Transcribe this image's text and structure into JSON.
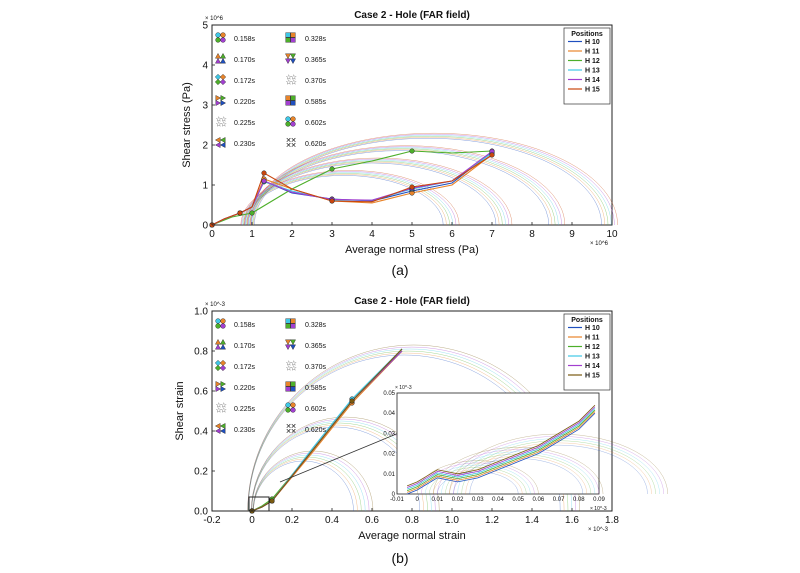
{
  "panels": [
    {
      "id": "a",
      "caption": "(a)",
      "chart_data": {
        "type": "line",
        "title": "Case 2 - Hole (FAR field)",
        "xlabel": "Average normal stress (Pa)",
        "ylabel": "Shear stress (Pa)",
        "xlim": [
          0,
          10
        ],
        "ylim": [
          0,
          5
        ],
        "x_multiplier": "× 10^6",
        "y_multiplier": "× 10^6",
        "x_ticks": [
          "0",
          "1",
          "2",
          "3",
          "4",
          "5",
          "6",
          "7",
          "8",
          "9",
          "10"
        ],
        "y_ticks": [
          "0",
          "1",
          "2",
          "3",
          "4",
          "5"
        ],
        "legend_title": "Positions",
        "series": [
          {
            "name": "H 10",
            "color": "#1f4fbf",
            "x": [
              0,
              0.3,
              0.7,
              1.0,
              1.3,
              2.0,
              3.0,
              4.0,
              5.0,
              6.0,
              7.0
            ],
            "y": [
              0,
              0.15,
              0.3,
              0.45,
              1.1,
              0.8,
              0.65,
              0.6,
              0.85,
              1.05,
              1.82
            ]
          },
          {
            "name": "H 11",
            "color": "#e8842a",
            "x": [
              0,
              0.3,
              0.7,
              1.0,
              1.3,
              2.0,
              3.0,
              4.0,
              5.0,
              6.0,
              7.0
            ],
            "y": [
              0,
              0.15,
              0.3,
              0.45,
              1.15,
              0.9,
              0.6,
              0.55,
              0.8,
              1.0,
              1.76
            ]
          },
          {
            "name": "H 12",
            "color": "#4daf2a",
            "x": [
              0,
              0.5,
              1.0,
              2.0,
              3.0,
              4.0,
              5.0,
              6.0,
              7.0
            ],
            "y": [
              0,
              0.2,
              0.3,
              0.9,
              1.4,
              1.6,
              1.85,
              1.8,
              1.85
            ]
          },
          {
            "name": "H 13",
            "color": "#3fc7e6",
            "x": [
              0,
              0.3,
              0.7,
              1.0,
              1.3,
              2.0,
              3.0,
              4.0,
              5.0,
              6.0,
              7.0
            ],
            "y": [
              0,
              0.15,
              0.3,
              0.45,
              1.08,
              0.85,
              0.62,
              0.62,
              0.9,
              1.1,
              1.8
            ]
          },
          {
            "name": "H 14",
            "color": "#a23fd0",
            "x": [
              0,
              0.3,
              0.7,
              1.0,
              1.3,
              2.0,
              3.0,
              4.0,
              5.0,
              6.0,
              7.0
            ],
            "y": [
              0,
              0.15,
              0.3,
              0.45,
              1.1,
              0.82,
              0.64,
              0.62,
              0.92,
              1.1,
              1.84
            ]
          },
          {
            "name": "H 15",
            "color": "#c9460e",
            "x": [
              0,
              0.3,
              0.7,
              1.0,
              1.3,
              2.0,
              3.0,
              4.0,
              5.0,
              6.0,
              7.0
            ],
            "y": [
              0,
              0.15,
              0.3,
              0.45,
              1.3,
              0.9,
              0.6,
              0.58,
              0.95,
              1.1,
              1.75
            ]
          }
        ],
        "mohr_circles_radii": [
          7,
          6,
          5,
          4
        ],
        "times_left": [
          "0.158s",
          "0.170s",
          "0.172s",
          "0.220s",
          "0.225s",
          "0.230s"
        ],
        "times_right": [
          "0.328s",
          "0.365s",
          "0.370s",
          "0.585s",
          "0.602s",
          "0.620s"
        ]
      }
    },
    {
      "id": "b",
      "caption": "(b)",
      "chart_data": {
        "type": "line",
        "title": "Case 2 - Hole (FAR field)",
        "xlabel": "Average normal strain",
        "ylabel": "Shear strain",
        "xlim": [
          -0.2,
          1.8
        ],
        "ylim": [
          0,
          1.0
        ],
        "x_multiplier": "× 10^-3",
        "y_multiplier": "× 10^-3",
        "x_ticks": [
          "-0.2",
          "0",
          "0.2",
          "0.4",
          "0.6",
          "0.8",
          "1.0",
          "1.2",
          "1.4",
          "1.6",
          "1.8"
        ],
        "y_ticks": [
          "0.0",
          "0.2",
          "0.4",
          "0.6",
          "0.8",
          "1.0"
        ],
        "legend_title": "Positions",
        "series": [
          {
            "name": "H 10",
            "color": "#1f4fbf",
            "x": [
              0,
              0.05,
              0.1,
              0.3,
              0.5,
              0.75
            ],
            "y": [
              0,
              0.02,
              0.05,
              0.3,
              0.55,
              0.81
            ]
          },
          {
            "name": "H 11",
            "color": "#e8842a",
            "x": [
              0,
              0.05,
              0.1,
              0.3,
              0.5,
              0.75
            ],
            "y": [
              0,
              0.02,
              0.05,
              0.29,
              0.54,
              0.8
            ]
          },
          {
            "name": "H 12",
            "color": "#4daf2a",
            "x": [
              0,
              0.05,
              0.1,
              0.3,
              0.5,
              0.75
            ],
            "y": [
              0,
              0.025,
              0.06,
              0.3,
              0.55,
              0.8
            ]
          },
          {
            "name": "H 13",
            "color": "#3fc7e6",
            "x": [
              0,
              0.05,
              0.1,
              0.3,
              0.5,
              0.75
            ],
            "y": [
              0,
              0.02,
              0.05,
              0.31,
              0.56,
              0.81
            ]
          },
          {
            "name": "H 14",
            "color": "#a23fd0",
            "x": [
              0,
              0.05,
              0.1,
              0.3,
              0.5,
              0.75
            ],
            "y": [
              0,
              0.02,
              0.05,
              0.3,
              0.55,
              0.8
            ]
          },
          {
            "name": "H 15",
            "color": "#7a5a10",
            "x": [
              0,
              0.05,
              0.1,
              0.3,
              0.5,
              0.75
            ],
            "y": [
              0,
              0.02,
              0.05,
              0.3,
              0.55,
              0.81
            ]
          }
        ],
        "inset": {
          "x_ticks": [
            "-0.01",
            "0",
            "0.01",
            "0.02",
            "0.03",
            "0.04",
            "0.05",
            "0.06",
            "0.07",
            "0.08",
            "0.09"
          ],
          "y_ticks": [
            "0",
            "0.01",
            "0.02",
            "0.03",
            "0.04",
            "0.05"
          ],
          "x_multiplier": "× 10^-3",
          "y_multiplier": "× 10^-3",
          "xlim": [
            -0.01,
            0.09
          ],
          "ylim": [
            0,
            0.05
          ]
        },
        "times_left": [
          "0.158s",
          "0.170s",
          "0.172s",
          "0.220s",
          "0.225s",
          "0.230s"
        ],
        "times_right": [
          "0.328s",
          "0.365s",
          "0.370s",
          "0.585s",
          "0.602s",
          "0.620s"
        ]
      }
    }
  ],
  "legend_entries": [
    "H 10",
    "H 11",
    "H 12",
    "H 13",
    "H 14",
    "H 15"
  ],
  "legend_colors": [
    "#1f4fbf",
    "#e8842a",
    "#4daf2a",
    "#3fc7e6",
    "#a23fd0",
    "#c9460e"
  ],
  "legend_colors_b": [
    "#1f4fbf",
    "#e8842a",
    "#4daf2a",
    "#3fc7e6",
    "#a23fd0",
    "#7a5a10"
  ],
  "legend_title": "Positions"
}
